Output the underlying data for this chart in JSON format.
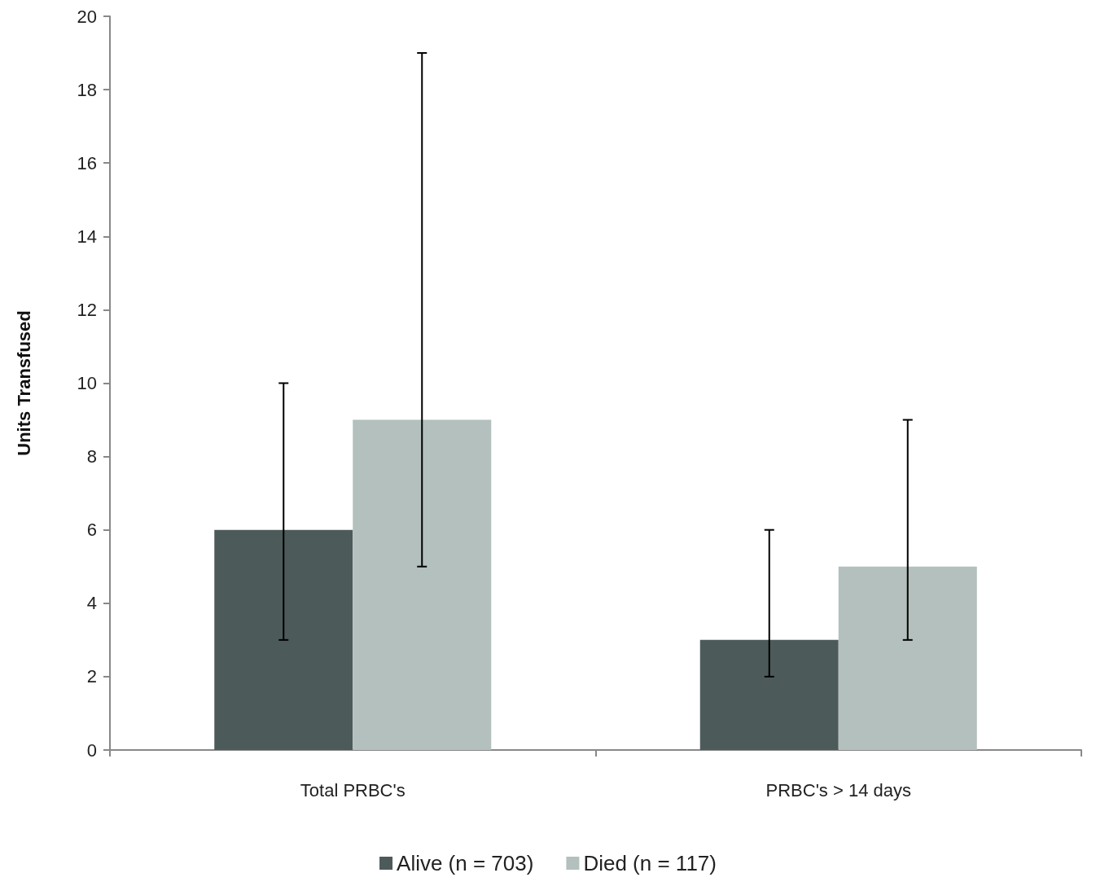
{
  "chart_data": {
    "type": "bar",
    "ylabel": "Units Transfused",
    "categories": [
      "Total PRBC's",
      "PRBC's > 14 days"
    ],
    "series": [
      {
        "name": "Alive (n = 703)",
        "color": "#4d5a5a",
        "values": [
          6,
          3
        ],
        "errors": [
          [
            3,
            10
          ],
          [
            2,
            6
          ]
        ]
      },
      {
        "name": "Died (n = 117)",
        "color": "#b3c0bd",
        "values": [
          9,
          5
        ],
        "errors": [
          [
            5,
            19
          ],
          [
            3,
            9
          ]
        ]
      }
    ],
    "ylim": [
      0,
      20
    ],
    "yticks": [
      0,
      2,
      4,
      6,
      8,
      10,
      12,
      14,
      16,
      18,
      20
    ],
    "grid": false,
    "legend": "bottom"
  }
}
